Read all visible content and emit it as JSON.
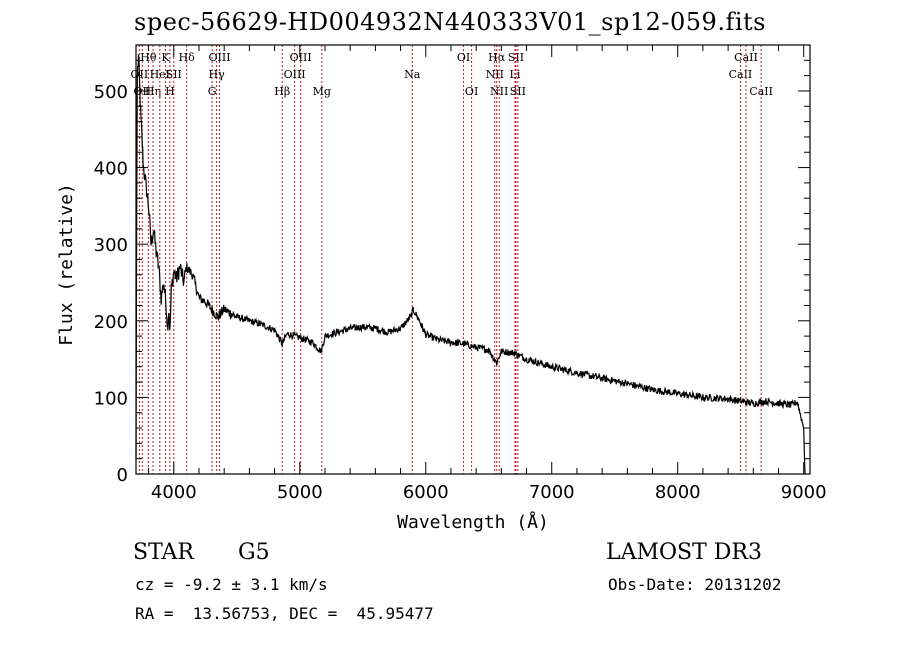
{
  "title": "spec-56629-HD004932N440333V01_sp12-059.fits",
  "info": {
    "object_class": "STAR",
    "subclass": "G5",
    "survey": "LAMOST DR3",
    "cz": "cz = -9.2 ± 3.1 km/s",
    "obs_date": "Obs-Date: 20131202",
    "coords": "RA =  13.56753, DEC =  45.95477"
  },
  "colors": {
    "spectrum": "#000000",
    "lines": "#b22222",
    "axes": "#000000"
  },
  "chart_data": {
    "type": "line",
    "xlabel": "Wavelength (Å)",
    "ylabel": "Flux (relative)",
    "xlim": [
      3700,
      9050
    ],
    "ylim": [
      0,
      560
    ],
    "xticks": [
      4000,
      5000,
      6000,
      7000,
      8000,
      9000
    ],
    "yticks": [
      0,
      100,
      200,
      300,
      400,
      500
    ],
    "series": [
      {
        "name": "flux",
        "points": [
          [
            3700,
            20
          ],
          [
            3705,
            300
          ],
          [
            3710,
            520
          ],
          [
            3720,
            545
          ],
          [
            3730,
            500
          ],
          [
            3740,
            460
          ],
          [
            3750,
            430
          ],
          [
            3760,
            400
          ],
          [
            3780,
            375
          ],
          [
            3800,
            350
          ],
          [
            3820,
            300
          ],
          [
            3840,
            320
          ],
          [
            3860,
            290
          ],
          [
            3880,
            270
          ],
          [
            3900,
            230
          ],
          [
            3920,
            250
          ],
          [
            3940,
            220
          ],
          [
            3950,
            190
          ],
          [
            3960,
            215
          ],
          [
            3970,
            185
          ],
          [
            3980,
            240
          ],
          [
            4000,
            265
          ],
          [
            4020,
            255
          ],
          [
            4050,
            270
          ],
          [
            4080,
            250
          ],
          [
            4100,
            270
          ],
          [
            4150,
            260
          ],
          [
            4200,
            230
          ],
          [
            4250,
            225
          ],
          [
            4300,
            215
          ],
          [
            4350,
            205
          ],
          [
            4400,
            215
          ],
          [
            4500,
            205
          ],
          [
            4600,
            200
          ],
          [
            4700,
            195
          ],
          [
            4800,
            188
          ],
          [
            4860,
            170
          ],
          [
            4900,
            183
          ],
          [
            5000,
            178
          ],
          [
            5100,
            172
          ],
          [
            5170,
            160
          ],
          [
            5200,
            180
          ],
          [
            5300,
            185
          ],
          [
            5400,
            190
          ],
          [
            5500,
            192
          ],
          [
            5600,
            190
          ],
          [
            5700,
            185
          ],
          [
            5800,
            190
          ],
          [
            5880,
            205
          ],
          [
            5900,
            215
          ],
          [
            5950,
            200
          ],
          [
            6000,
            182
          ],
          [
            6100,
            175
          ],
          [
            6200,
            172
          ],
          [
            6300,
            170
          ],
          [
            6400,
            165
          ],
          [
            6500,
            162
          ],
          [
            6563,
            145
          ],
          [
            6600,
            160
          ],
          [
            6700,
            158
          ],
          [
            6800,
            150
          ],
          [
            6900,
            145
          ],
          [
            7000,
            140
          ],
          [
            7200,
            132
          ],
          [
            7400,
            125
          ],
          [
            7600,
            118
          ],
          [
            7800,
            110
          ],
          [
            8000,
            105
          ],
          [
            8200,
            100
          ],
          [
            8400,
            98
          ],
          [
            8500,
            95
          ],
          [
            8600,
            92
          ],
          [
            8700,
            95
          ],
          [
            8800,
            92
          ],
          [
            8900,
            90
          ],
          [
            8950,
            94
          ],
          [
            9000,
            60
          ],
          [
            9010,
            0
          ]
        ]
      }
    ],
    "line_markers": [
      {
        "wave": 3727,
        "label": "OII",
        "row": 2
      },
      {
        "wave": 3750,
        "label": "OII",
        "row": 3
      },
      {
        "wave": 3798,
        "label": "Hθ",
        "row": 1
      },
      {
        "wave": 3835,
        "label": "Hη",
        "row": 3
      },
      {
        "wave": 3889,
        "label": "HeI",
        "row": 2
      },
      {
        "wave": 3934,
        "label": "K",
        "row": 1
      },
      {
        "wave": 3969,
        "label": "H",
        "row": 3
      },
      {
        "wave": 4000,
        "label": "SII",
        "row": 2
      },
      {
        "wave": 4102,
        "label": "Hδ",
        "row": 1
      },
      {
        "wave": 4304,
        "label": "G",
        "row": 3
      },
      {
        "wave": 4340,
        "label": "Hγ",
        "row": 2
      },
      {
        "wave": 4363,
        "label": "OIII",
        "row": 1
      },
      {
        "wave": 4861,
        "label": "Hβ",
        "row": 3
      },
      {
        "wave": 4959,
        "label": "OIII",
        "row": 2
      },
      {
        "wave": 5007,
        "label": "OIII",
        "row": 1
      },
      {
        "wave": 5175,
        "label": "Mg",
        "row": 3
      },
      {
        "wave": 5893,
        "label": "Na",
        "row": 2
      },
      {
        "wave": 6300,
        "label": "OI",
        "row": 1
      },
      {
        "wave": 6364,
        "label": "OI",
        "row": 3
      },
      {
        "wave": 6548,
        "label": "NII",
        "row": 2
      },
      {
        "wave": 6563,
        "label": "Hα",
        "row": 1
      },
      {
        "wave": 6583,
        "label": "NII",
        "row": 3
      },
      {
        "wave": 6708,
        "label": "Li",
        "row": 2
      },
      {
        "wave": 6716,
        "label": "SII",
        "row": 1
      },
      {
        "wave": 6731,
        "label": "SII",
        "row": 3
      },
      {
        "wave": 8498,
        "label": "CaII",
        "row": 2
      },
      {
        "wave": 8542,
        "label": "CaII",
        "row": 1
      },
      {
        "wave": 8662,
        "label": "CaII",
        "row": 3
      }
    ]
  }
}
